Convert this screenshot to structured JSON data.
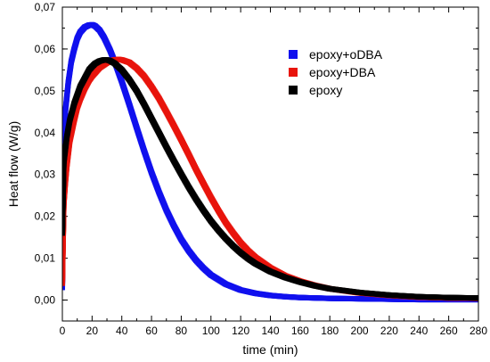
{
  "chart_data": {
    "type": "scatter",
    "title": "",
    "xlabel": "time (min)",
    "ylabel": "Heat flow (W/g)",
    "xlim": [
      0,
      280
    ],
    "ylim": [
      -0.005,
      0.07
    ],
    "x_ticks": [
      0,
      20,
      40,
      60,
      80,
      100,
      120,
      140,
      160,
      180,
      200,
      220,
      240,
      260,
      280
    ],
    "x_tick_labels": [
      "0",
      "20",
      "40",
      "60",
      "80",
      "100",
      "120",
      "140",
      "160",
      "180",
      "200",
      "220",
      "240",
      "260",
      "280"
    ],
    "y_ticks": [
      0,
      0.01,
      0.02,
      0.03,
      0.04,
      0.05,
      0.06,
      0.07
    ],
    "y_tick_labels": [
      "0,00",
      "0,01",
      "0,02",
      "0,03",
      "0,04",
      "0,05",
      "0,06",
      "0,07"
    ],
    "grid": false,
    "legend_position": "top-right",
    "series": [
      {
        "name": "epoxy+oDBA",
        "color": "#1010ee",
        "x": [
          0,
          1,
          2,
          4,
          6,
          8,
          10,
          12,
          15,
          18,
          20,
          22,
          25,
          28,
          32,
          36,
          40,
          45,
          50,
          55,
          60,
          65,
          70,
          75,
          80,
          85,
          90,
          95,
          100,
          110,
          120,
          130,
          140,
          150,
          160,
          170,
          180,
          200,
          220,
          240,
          260,
          280
        ],
        "y": [
          0.003,
          0.038,
          0.045,
          0.052,
          0.057,
          0.06,
          0.0625,
          0.064,
          0.0652,
          0.0657,
          0.0658,
          0.0655,
          0.0645,
          0.0628,
          0.0598,
          0.0562,
          0.0522,
          0.0468,
          0.0412,
          0.0357,
          0.0305,
          0.0258,
          0.0215,
          0.0178,
          0.0145,
          0.0118,
          0.0095,
          0.0076,
          0.006,
          0.0038,
          0.0024,
          0.0016,
          0.0011,
          0.0008,
          0.0006,
          0.0005,
          0.0004,
          0.0003,
          0.0002,
          0.0001,
          0.0001,
          0.0001
        ]
      },
      {
        "name": "epoxy+DBA",
        "color": "#e8140c",
        "x": [
          0,
          1,
          2,
          3,
          5,
          8,
          10,
          12,
          15,
          18,
          20,
          25,
          30,
          35,
          38,
          40,
          45,
          50,
          55,
          60,
          65,
          70,
          75,
          80,
          85,
          90,
          95,
          100,
          105,
          110,
          115,
          120,
          125,
          130,
          140,
          150,
          160,
          170,
          180,
          200,
          220,
          240,
          260,
          280
        ],
        "y": [
          0.004,
          0.023,
          0.028,
          0.032,
          0.038,
          0.043,
          0.046,
          0.048,
          0.0505,
          0.0525,
          0.0535,
          0.0555,
          0.0567,
          0.0574,
          0.0575,
          0.0574,
          0.0568,
          0.0554,
          0.0535,
          0.051,
          0.0482,
          0.045,
          0.0417,
          0.0383,
          0.0348,
          0.0312,
          0.0278,
          0.0245,
          0.0214,
          0.0185,
          0.016,
          0.0137,
          0.0118,
          0.0102,
          0.0077,
          0.0058,
          0.0045,
          0.0035,
          0.0027,
          0.0017,
          0.0011,
          0.0007,
          0.0005,
          0.0004
        ]
      },
      {
        "name": "epoxy",
        "color": "#000000",
        "x": [
          0,
          1,
          2,
          3,
          5,
          8,
          10,
          12,
          15,
          18,
          20,
          22,
          25,
          28,
          30,
          32,
          35,
          40,
          45,
          50,
          55,
          60,
          65,
          70,
          75,
          80,
          85,
          90,
          95,
          100,
          105,
          110,
          115,
          120,
          125,
          130,
          140,
          150,
          160,
          170,
          180,
          200,
          220,
          240,
          260,
          280
        ],
        "y": [
          0.016,
          0.033,
          0.036,
          0.039,
          0.043,
          0.047,
          0.049,
          0.051,
          0.053,
          0.055,
          0.0558,
          0.0565,
          0.0571,
          0.0574,
          0.0574,
          0.0572,
          0.0566,
          0.055,
          0.0527,
          0.05,
          0.0468,
          0.0434,
          0.04,
          0.0366,
          0.0333,
          0.0301,
          0.027,
          0.0241,
          0.0214,
          0.0189,
          0.0167,
          0.0147,
          0.0129,
          0.0113,
          0.0099,
          0.0087,
          0.0068,
          0.0054,
          0.0043,
          0.0034,
          0.0027,
          0.0018,
          0.0012,
          0.0008,
          0.0006,
          0.0005
        ]
      }
    ]
  }
}
